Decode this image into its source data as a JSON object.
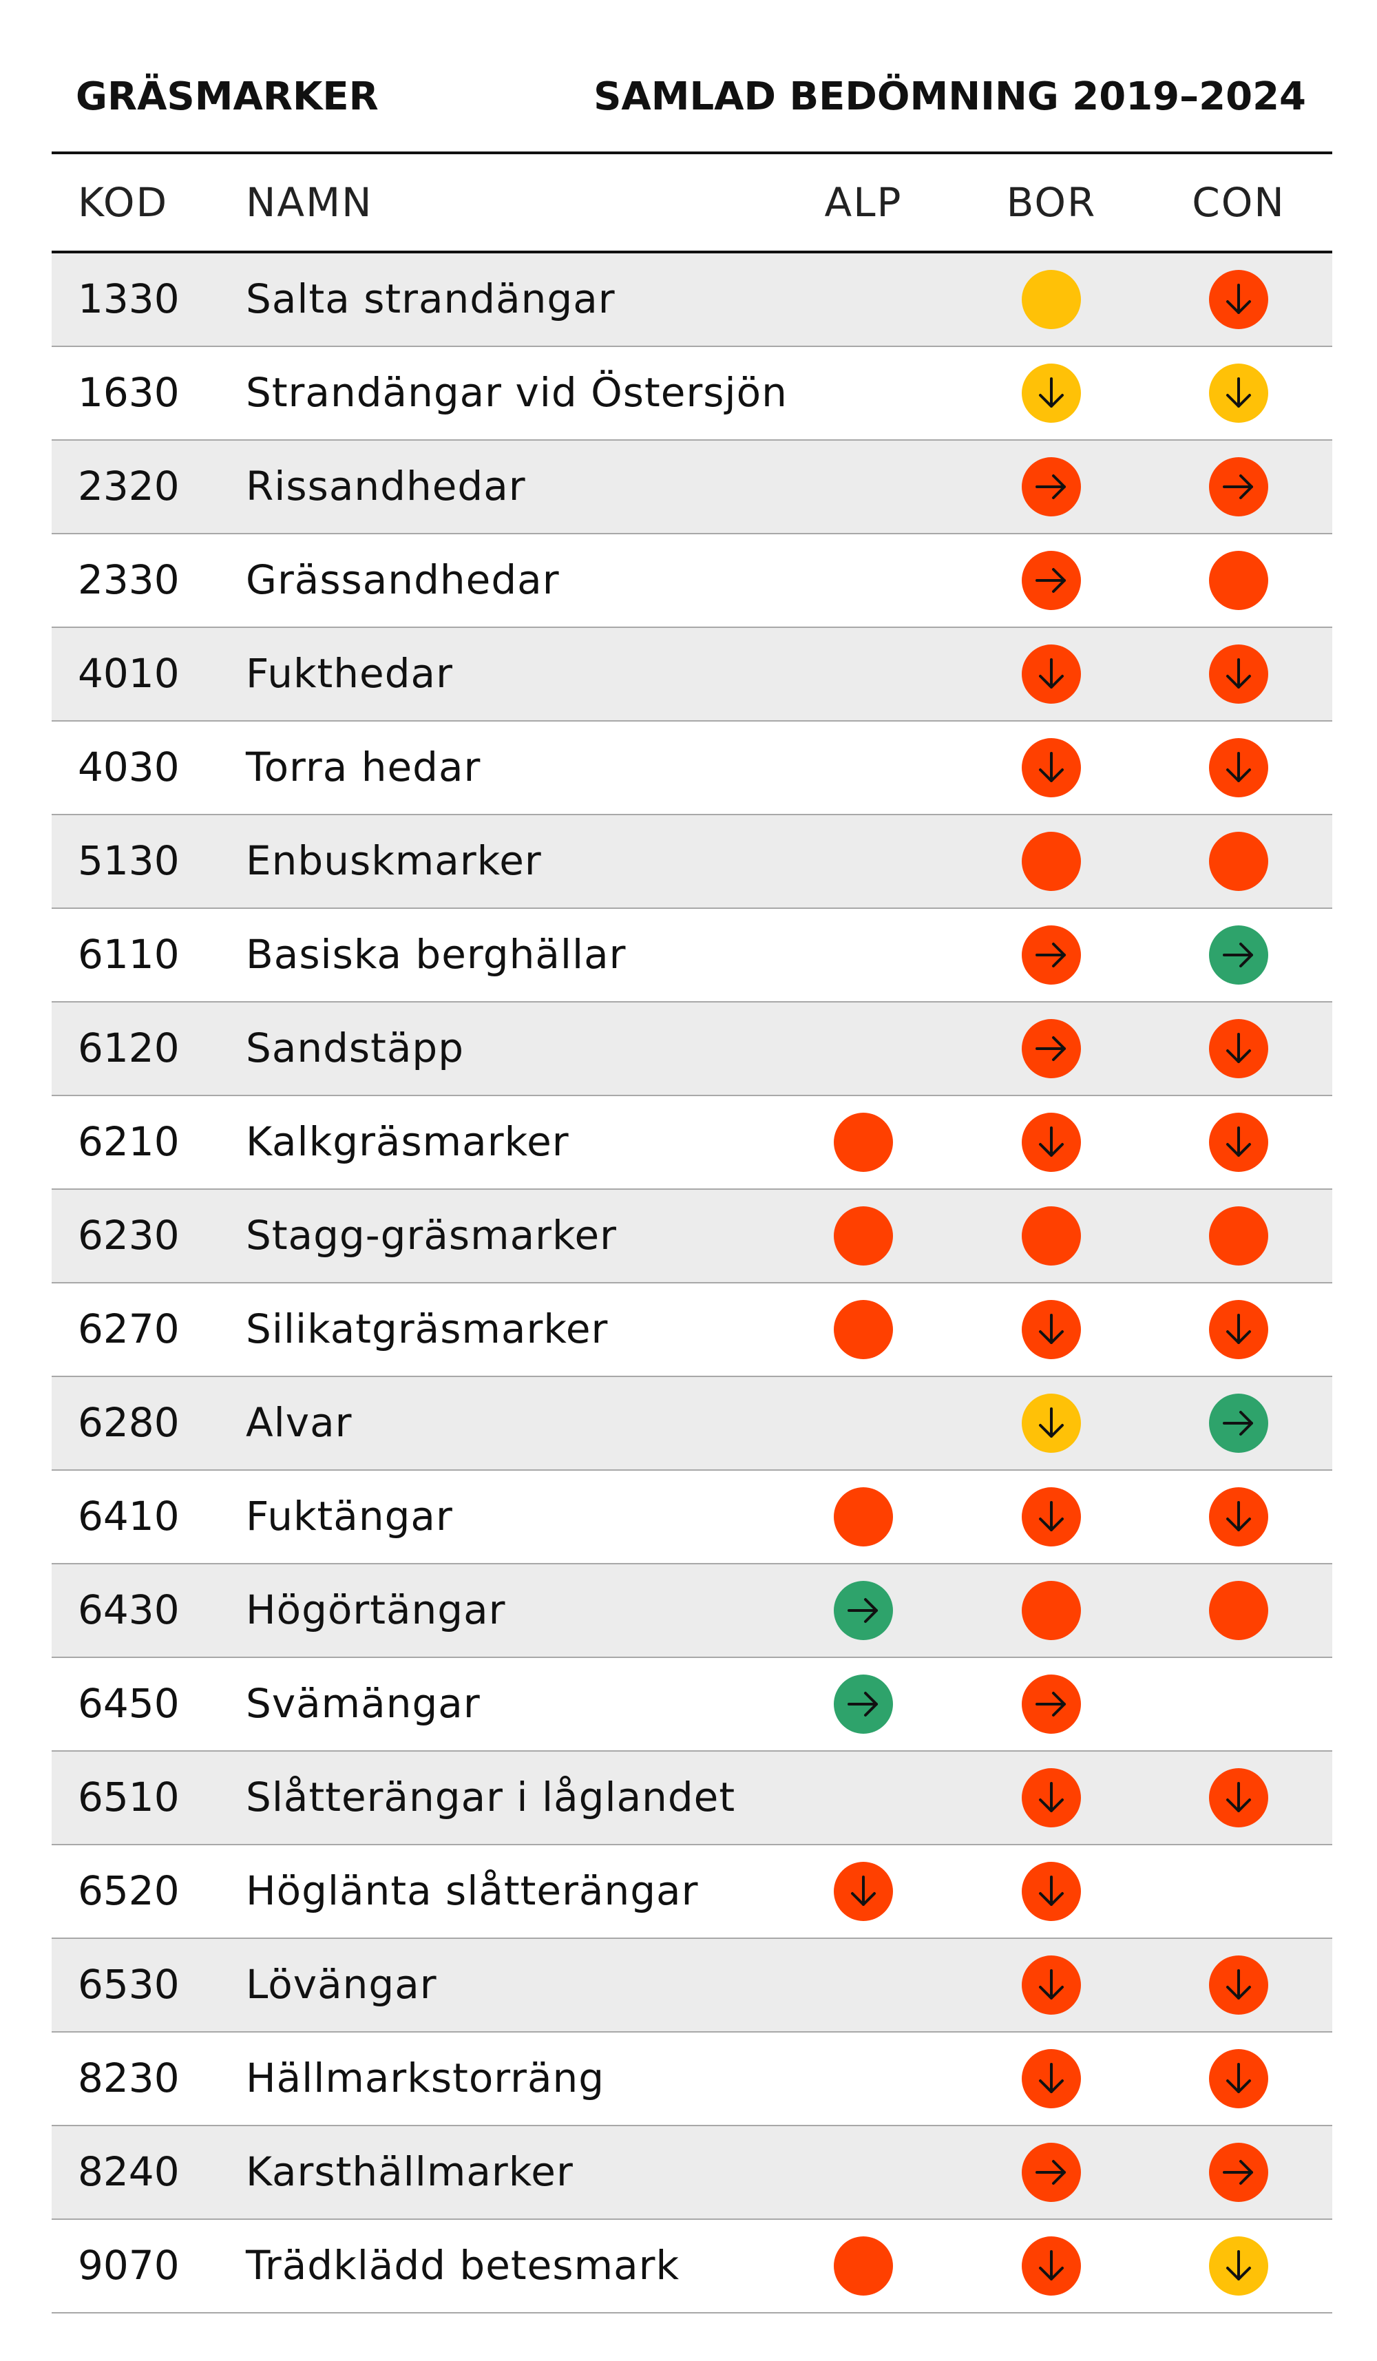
{
  "header": {
    "title_left": "GRÄSMARKER",
    "title_right": "SAMLAD BEDÖMNING 2019–2024"
  },
  "columns": {
    "kod": "KOD",
    "namn": "NAMN",
    "alp": "ALP",
    "bor": "BOR",
    "con": "CON"
  },
  "colors": {
    "red": "#ff4000",
    "yellow": "#ffc107",
    "green": "#2ea36b",
    "shaded_row": "#ececec"
  },
  "rows": [
    {
      "kod": "1330",
      "namn": "Salta strandängar",
      "alp": null,
      "bor": {
        "color": "yellow",
        "icon": "dot-icon"
      },
      "con": {
        "color": "red",
        "icon": "arrow-down-icon"
      }
    },
    {
      "kod": "1630",
      "namn": "Strandängar vid Östersjön",
      "alp": null,
      "bor": {
        "color": "yellow",
        "icon": "arrow-down-icon"
      },
      "con": {
        "color": "yellow",
        "icon": "arrow-down-icon"
      }
    },
    {
      "kod": "2320",
      "namn": "Rissandhedar",
      "alp": null,
      "bor": {
        "color": "red",
        "icon": "arrow-right-icon"
      },
      "con": {
        "color": "red",
        "icon": "arrow-right-icon"
      }
    },
    {
      "kod": "2330",
      "namn": "Grässandhedar",
      "alp": null,
      "bor": {
        "color": "red",
        "icon": "arrow-right-icon"
      },
      "con": {
        "color": "red",
        "icon": "dot-icon"
      }
    },
    {
      "kod": "4010",
      "namn": "Fukthedar",
      "alp": null,
      "bor": {
        "color": "red",
        "icon": "arrow-down-icon"
      },
      "con": {
        "color": "red",
        "icon": "arrow-down-icon"
      }
    },
    {
      "kod": "4030",
      "namn": "Torra hedar",
      "alp": null,
      "bor": {
        "color": "red",
        "icon": "arrow-down-icon"
      },
      "con": {
        "color": "red",
        "icon": "arrow-down-icon"
      }
    },
    {
      "kod": "5130",
      "namn": "Enbuskmarker",
      "alp": null,
      "bor": {
        "color": "red",
        "icon": "dot-icon"
      },
      "con": {
        "color": "red",
        "icon": "dot-icon"
      }
    },
    {
      "kod": "6110",
      "namn": "Basiska berghällar",
      "alp": null,
      "bor": {
        "color": "red",
        "icon": "arrow-right-icon"
      },
      "con": {
        "color": "green",
        "icon": "arrow-right-icon"
      }
    },
    {
      "kod": "6120",
      "namn": "Sandstäpp",
      "alp": null,
      "bor": {
        "color": "red",
        "icon": "arrow-right-icon"
      },
      "con": {
        "color": "red",
        "icon": "arrow-down-icon"
      }
    },
    {
      "kod": "6210",
      "namn": "Kalkgräsmarker",
      "alp": {
        "color": "red",
        "icon": "dot-icon"
      },
      "bor": {
        "color": "red",
        "icon": "arrow-down-icon"
      },
      "con": {
        "color": "red",
        "icon": "arrow-down-icon"
      }
    },
    {
      "kod": "6230",
      "namn": "Stagg-gräsmarker",
      "alp": {
        "color": "red",
        "icon": "dot-icon"
      },
      "bor": {
        "color": "red",
        "icon": "dot-icon"
      },
      "con": {
        "color": "red",
        "icon": "dot-icon"
      }
    },
    {
      "kod": "6270",
      "namn": "Silikatgräsmarker",
      "alp": {
        "color": "red",
        "icon": "dot-icon"
      },
      "bor": {
        "color": "red",
        "icon": "arrow-down-icon"
      },
      "con": {
        "color": "red",
        "icon": "arrow-down-icon"
      }
    },
    {
      "kod": "6280",
      "namn": "Alvar",
      "alp": null,
      "bor": {
        "color": "yellow",
        "icon": "arrow-down-icon"
      },
      "con": {
        "color": "green",
        "icon": "arrow-right-icon"
      }
    },
    {
      "kod": "6410",
      "namn": "Fuktängar",
      "alp": {
        "color": "red",
        "icon": "dot-icon"
      },
      "bor": {
        "color": "red",
        "icon": "arrow-down-icon"
      },
      "con": {
        "color": "red",
        "icon": "arrow-down-icon"
      }
    },
    {
      "kod": "6430",
      "namn": "Högörtängar",
      "alp": {
        "color": "green",
        "icon": "arrow-right-icon"
      },
      "bor": {
        "color": "red",
        "icon": "dot-icon"
      },
      "con": {
        "color": "red",
        "icon": "dot-icon"
      }
    },
    {
      "kod": "6450",
      "namn": "Svämängar",
      "alp": {
        "color": "green",
        "icon": "arrow-right-icon"
      },
      "bor": {
        "color": "red",
        "icon": "arrow-right-icon"
      },
      "con": null
    },
    {
      "kod": "6510",
      "namn": "Slåtterängar i låglandet",
      "alp": null,
      "bor": {
        "color": "red",
        "icon": "arrow-down-icon"
      },
      "con": {
        "color": "red",
        "icon": "arrow-down-icon"
      }
    },
    {
      "kod": "6520",
      "namn": "Höglänta slåtterängar",
      "alp": {
        "color": "red",
        "icon": "arrow-down-icon"
      },
      "bor": {
        "color": "red",
        "icon": "arrow-down-icon"
      },
      "con": null
    },
    {
      "kod": "6530",
      "namn": "Lövängar",
      "alp": null,
      "bor": {
        "color": "red",
        "icon": "arrow-down-icon"
      },
      "con": {
        "color": "red",
        "icon": "arrow-down-icon"
      }
    },
    {
      "kod": "8230",
      "namn": "Hällmarkstorräng",
      "alp": null,
      "bor": {
        "color": "red",
        "icon": "arrow-down-icon"
      },
      "con": {
        "color": "red",
        "icon": "arrow-down-icon"
      }
    },
    {
      "kod": "8240",
      "namn": "Karsthällmarker",
      "alp": null,
      "bor": {
        "color": "red",
        "icon": "arrow-right-icon"
      },
      "con": {
        "color": "red",
        "icon": "arrow-right-icon"
      }
    },
    {
      "kod": "9070",
      "namn": "Trädklädd betesmark",
      "alp": {
        "color": "red",
        "icon": "dot-icon"
      },
      "bor": {
        "color": "red",
        "icon": "arrow-down-icon"
      },
      "con": {
        "color": "yellow",
        "icon": "arrow-down-icon"
      }
    }
  ]
}
